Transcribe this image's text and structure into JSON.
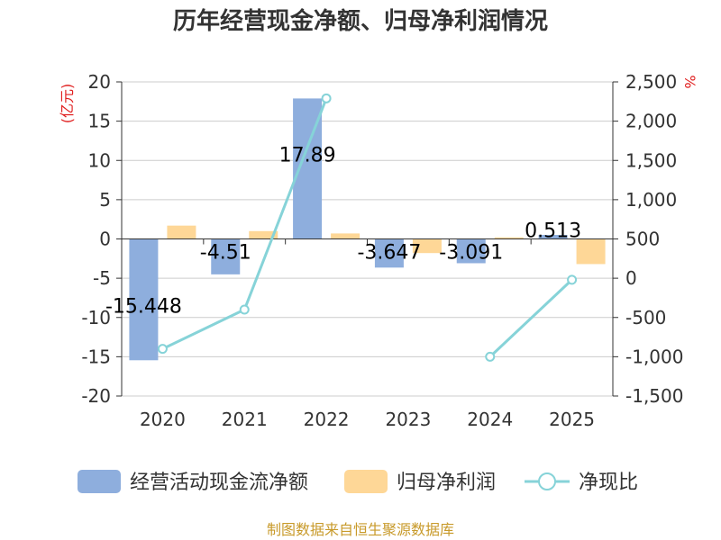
{
  "chart_data": {
    "type": "bar",
    "title": "历年经营现金净额、归母净利润情况",
    "categories": [
      "2020",
      "2021",
      "2022",
      "2023",
      "2024",
      "2025"
    ],
    "left_axis": {
      "unit": "(亿元)",
      "ylim": [
        -20,
        20
      ],
      "ticks": [
        "20",
        "15",
        "10",
        "5",
        "0",
        "-5",
        "-10",
        "-15",
        "-20"
      ]
    },
    "right_axis": {
      "unit": "%",
      "ylim": [
        -1500,
        2500
      ],
      "ticks": [
        "2,500",
        "2,000",
        "1,500",
        "1,000",
        "500",
        "0",
        "-500",
        "-1,000",
        "-1,500"
      ]
    },
    "series": [
      {
        "name": "经营活动现金流净额",
        "type": "bar",
        "axis": "left",
        "color": "#8eaedd",
        "values": [
          -15.448,
          -4.51,
          17.89,
          -3.647,
          -3.091,
          0.513
        ],
        "labels": [
          "-15.448",
          "-4.51",
          "17.89",
          "-3.647",
          "-3.091",
          "0.513"
        ]
      },
      {
        "name": "归母净利润",
        "type": "bar",
        "axis": "left",
        "color": "#fed797",
        "values": [
          1.7,
          1.0,
          0.7,
          -1.8,
          0.2,
          -3.2
        ]
      },
      {
        "name": "净现比",
        "type": "line",
        "axis": "right",
        "color": "#86d3d8",
        "values": [
          -900,
          -400,
          2290,
          null,
          -1000,
          -20
        ]
      }
    ]
  },
  "source": "制图数据来自恒生聚源数据库"
}
